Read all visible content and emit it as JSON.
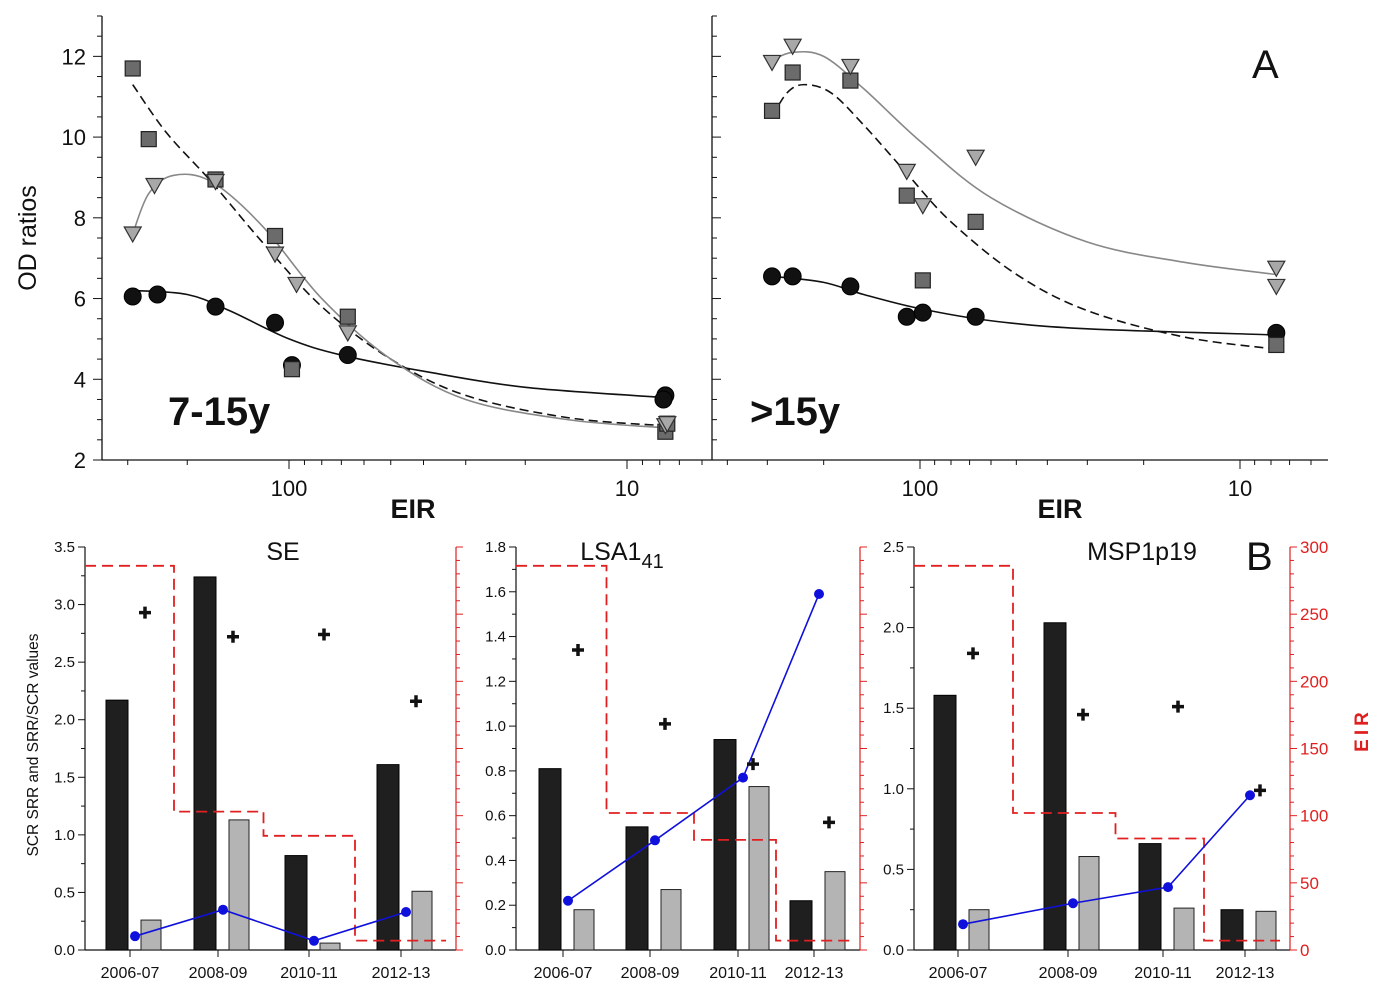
{
  "figure": {
    "panel_a_letter": "A",
    "panel_b_letter": "B"
  },
  "chart_data": [
    {
      "type": "scatter",
      "panel": "A",
      "subplot_label": "7-15y",
      "xlabel": "EIR",
      "ylabel": "OD ratios",
      "x_scale": "log-reversed",
      "xlim": [
        400,
        5
      ],
      "ylim": [
        2,
        13
      ],
      "x_ticks": [
        100,
        10
      ],
      "y_ticks": [
        2,
        4,
        6,
        8,
        10,
        12
      ],
      "series": [
        {
          "marker": "circle",
          "color": "#111111",
          "curve_style": "solid",
          "curve_color": "#111111",
          "points": [
            [
              290,
              6.05
            ],
            [
              245,
              6.1
            ],
            [
              165,
              5.8
            ],
            [
              110,
              5.4
            ],
            [
              98,
              4.35
            ],
            [
              67,
              4.6
            ],
            [
              7.7,
              3.6
            ],
            [
              7.8,
              3.5
            ]
          ],
          "fit": [
            [
              290,
              6.2
            ],
            [
              200,
              6.1
            ],
            [
              150,
              5.7
            ],
            [
              100,
              5.0
            ],
            [
              70,
              4.6
            ],
            [
              40,
              4.2
            ],
            [
              20,
              3.8
            ],
            [
              7.8,
              3.55
            ]
          ]
        },
        {
          "marker": "square",
          "color": "#6b6b6b",
          "curve_style": "dashed",
          "curve_color": "#111111",
          "points": [
            [
              290,
              11.7
            ],
            [
              260,
              9.95
            ],
            [
              165,
              8.95
            ],
            [
              110,
              7.55
            ],
            [
              98,
              4.25
            ],
            [
              67,
              5.55
            ],
            [
              7.7,
              2.7
            ],
            [
              7.6,
              2.9
            ]
          ],
          "fit": [
            [
              290,
              11.3
            ],
            [
              230,
              10.1
            ],
            [
              170,
              8.9
            ],
            [
              120,
              7.4
            ],
            [
              80,
              5.8
            ],
            [
              50,
              4.5
            ],
            [
              30,
              3.6
            ],
            [
              15,
              3.05
            ],
            [
              7.8,
              2.85
            ]
          ]
        },
        {
          "marker": "triangle",
          "color": "#a8a8a8",
          "curve_style": "solid",
          "curve_color": "#888888",
          "points": [
            [
              290,
              7.6
            ],
            [
              250,
              8.8
            ],
            [
              165,
              8.9
            ],
            [
              110,
              7.1
            ],
            [
              95,
              6.35
            ],
            [
              67,
              5.15
            ],
            [
              7.7,
              2.85
            ],
            [
              7.6,
              2.9
            ]
          ],
          "fit": [
            [
              290,
              7.6
            ],
            [
              260,
              8.6
            ],
            [
              220,
              9.05
            ],
            [
              170,
              8.9
            ],
            [
              120,
              7.8
            ],
            [
              80,
              6.0
            ],
            [
              50,
              4.5
            ],
            [
              30,
              3.5
            ],
            [
              15,
              3.0
            ],
            [
              7.8,
              2.8
            ]
          ]
        }
      ]
    },
    {
      "type": "scatter",
      "panel": "A",
      "subplot_label": ">15y",
      "xlabel": "EIR",
      "x_scale": "log-reversed",
      "xlim": [
        400,
        5
      ],
      "ylim": [
        2,
        13
      ],
      "x_ticks": [
        100,
        10
      ],
      "series": [
        {
          "marker": "circle",
          "color": "#111111",
          "curve_style": "solid",
          "curve_color": "#111111",
          "points": [
            [
              290,
              6.55
            ],
            [
              250,
              6.55
            ],
            [
              165,
              6.3
            ],
            [
              110,
              5.55
            ],
            [
              98,
              5.65
            ],
            [
              67,
              5.55
            ],
            [
              7.7,
              5.15
            ]
          ],
          "fit": [
            [
              290,
              6.55
            ],
            [
              200,
              6.4
            ],
            [
              150,
              6.1
            ],
            [
              100,
              5.75
            ],
            [
              60,
              5.45
            ],
            [
              30,
              5.25
            ],
            [
              7.8,
              5.1
            ]
          ]
        },
        {
          "marker": "square",
          "color": "#6b6b6b",
          "curve_style": "dashed",
          "curve_color": "#111111",
          "points": [
            [
              290,
              10.65
            ],
            [
              250,
              11.6
            ],
            [
              165,
              11.4
            ],
            [
              110,
              8.55
            ],
            [
              98,
              6.45
            ],
            [
              67,
              7.9
            ],
            [
              7.7,
              4.85
            ]
          ],
          "fit": [
            [
              290,
              10.5
            ],
            [
              260,
              11.1
            ],
            [
              230,
              11.3
            ],
            [
              190,
              11.1
            ],
            [
              150,
              10.3
            ],
            [
              110,
              9.1
            ],
            [
              80,
              7.9
            ],
            [
              50,
              6.6
            ],
            [
              30,
              5.7
            ],
            [
              15,
              5.05
            ],
            [
              7.8,
              4.75
            ]
          ]
        },
        {
          "marker": "triangle",
          "color": "#a8a8a8",
          "curve_style": "solid",
          "curve_color": "#888888",
          "points": [
            [
              290,
              11.85
            ],
            [
              250,
              12.25
            ],
            [
              165,
              11.75
            ],
            [
              110,
              9.15
            ],
            [
              98,
              8.3
            ],
            [
              67,
              9.5
            ],
            [
              7.7,
              6.75
            ],
            [
              7.7,
              6.3
            ]
          ],
          "fit": [
            [
              290,
              11.9
            ],
            [
              250,
              12.1
            ],
            [
              200,
              12.0
            ],
            [
              150,
              11.2
            ],
            [
              100,
              9.9
            ],
            [
              60,
              8.5
            ],
            [
              30,
              7.4
            ],
            [
              15,
              6.9
            ],
            [
              7.8,
              6.6
            ]
          ]
        }
      ]
    },
    {
      "type": "bar",
      "panel": "B",
      "title": "SE",
      "title_sub": "",
      "ylabel": "SCR SRR and SRR/SCR values",
      "categories": [
        "2006-07",
        "2008-09",
        "2010-11",
        "2012-13"
      ],
      "ylim": [
        0,
        3.5
      ],
      "y_ticks": [
        0.0,
        0.5,
        1.0,
        1.5,
        2.0,
        2.5,
        3.0,
        3.5
      ],
      "y_tick_labels": [
        "0.0",
        "0.5",
        "1.0",
        "1.5",
        "2.0",
        "2.5",
        "3.0",
        "3.5"
      ],
      "series": [
        {
          "role": "black-bar",
          "color": "#1f1f1f",
          "values": [
            2.17,
            3.24,
            0.82,
            1.61
          ]
        },
        {
          "role": "grey-bar",
          "color": "#b4b4b4",
          "values": [
            0.26,
            1.13,
            0.06,
            0.51
          ]
        },
        {
          "role": "blue-line",
          "color": "#1010dd",
          "values": [
            0.12,
            0.35,
            0.08,
            0.33
          ]
        },
        {
          "role": "cross-marker",
          "color": "#111111",
          "values": [
            2.93,
            2.72,
            2.74,
            2.16
          ]
        }
      ],
      "eir_step": {
        "color": "#e02020",
        "values": [
          286,
          103,
          85,
          7
        ]
      }
    },
    {
      "type": "bar",
      "panel": "B",
      "title": "LSA1",
      "title_sub": "41",
      "categories": [
        "2006-07",
        "2008-09",
        "2010-11",
        "2012-13"
      ],
      "ylim": [
        0,
        1.8
      ],
      "y_ticks": [
        0.0,
        0.2,
        0.4,
        0.6,
        0.8,
        1.0,
        1.2,
        1.4,
        1.6,
        1.8
      ],
      "y_tick_labels": [
        "0.0",
        "0.2",
        "0.4",
        "0.6",
        "0.8",
        "1.0",
        "1.2",
        "1.4",
        "1.6",
        "1.8"
      ],
      "series": [
        {
          "role": "black-bar",
          "color": "#1f1f1f",
          "values": [
            0.81,
            0.55,
            0.94,
            0.22
          ]
        },
        {
          "role": "grey-bar",
          "color": "#b4b4b4",
          "values": [
            0.18,
            0.27,
            0.73,
            0.35
          ]
        },
        {
          "role": "blue-line",
          "color": "#1010dd",
          "values": [
            0.22,
            0.49,
            0.77,
            1.59
          ]
        },
        {
          "role": "cross-marker",
          "color": "#111111",
          "values": [
            1.34,
            1.01,
            0.83,
            0.57
          ]
        }
      ],
      "eir_step": {
        "color": "#e02020",
        "values": [
          286,
          102,
          82,
          7
        ]
      }
    },
    {
      "type": "bar",
      "panel": "B",
      "title": "MSP1p19",
      "title_sub": "",
      "right_axis_label": "EIR",
      "categories": [
        "2006-07",
        "2008-09",
        "2010-11",
        "2012-13"
      ],
      "ylim": [
        0,
        2.5
      ],
      "y_ticks": [
        0.0,
        0.5,
        1.0,
        1.5,
        2.0,
        2.5
      ],
      "y_tick_labels": [
        "0.0",
        "0.5",
        "1.0",
        "1.5",
        "2.0",
        "2.5"
      ],
      "right_ylim": [
        0,
        300
      ],
      "right_ticks": [
        0,
        50,
        100,
        150,
        200,
        250,
        300
      ],
      "right_tick_labels": [
        "0",
        "50",
        "100",
        "150",
        "200",
        "250",
        "300"
      ],
      "series": [
        {
          "role": "black-bar",
          "color": "#1f1f1f",
          "values": [
            1.58,
            2.03,
            0.66,
            0.25
          ]
        },
        {
          "role": "grey-bar",
          "color": "#b4b4b4",
          "values": [
            0.25,
            0.58,
            0.26,
            0.24
          ]
        },
        {
          "role": "blue-line",
          "color": "#1010dd",
          "values": [
            0.16,
            0.29,
            0.39,
            0.96
          ]
        },
        {
          "role": "cross-marker",
          "color": "#111111",
          "values": [
            1.84,
            1.46,
            1.51,
            0.99
          ]
        }
      ],
      "eir_step": {
        "color": "#e02020",
        "values": [
          286,
          102,
          83,
          7
        ]
      }
    }
  ]
}
